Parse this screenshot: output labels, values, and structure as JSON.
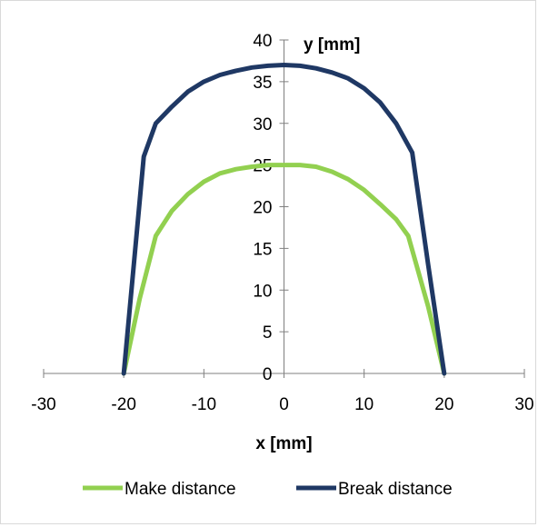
{
  "chart_data": {
    "type": "line",
    "xlabel": "x [mm]",
    "ylabel": "y [mm]",
    "xlim": [
      -30,
      30
    ],
    "ylim": [
      0,
      40
    ],
    "x_ticks": [
      -30,
      -20,
      -10,
      0,
      10,
      20,
      30
    ],
    "y_ticks": [
      0,
      5,
      10,
      15,
      20,
      25,
      30,
      35,
      40
    ],
    "grid": false,
    "legend_position": "bottom",
    "series": [
      {
        "name": "Make distance",
        "color": "#92d050",
        "points": [
          [
            -20,
            0
          ],
          [
            -18,
            9
          ],
          [
            -16,
            16.5
          ],
          [
            -14,
            19.5
          ],
          [
            -12,
            21.5
          ],
          [
            -10,
            23
          ],
          [
            -8,
            24
          ],
          [
            -6,
            24.5
          ],
          [
            -4,
            24.8
          ],
          [
            -2,
            25
          ],
          [
            0,
            25
          ],
          [
            2,
            25
          ],
          [
            4,
            24.8
          ],
          [
            6,
            24.2
          ],
          [
            8,
            23.3
          ],
          [
            10,
            22
          ],
          [
            12,
            20.3
          ],
          [
            14,
            18.5
          ],
          [
            15.5,
            16.5
          ],
          [
            18,
            8
          ],
          [
            20,
            0
          ]
        ]
      },
      {
        "name": "Break distance",
        "color": "#1f3864",
        "points": [
          [
            -20,
            0
          ],
          [
            -17.5,
            26
          ],
          [
            -16,
            30
          ],
          [
            -14,
            32
          ],
          [
            -12,
            33.8
          ],
          [
            -10,
            35
          ],
          [
            -8,
            35.8
          ],
          [
            -6,
            36.3
          ],
          [
            -4,
            36.7
          ],
          [
            -2,
            36.9
          ],
          [
            0,
            37
          ],
          [
            2,
            36.9
          ],
          [
            4,
            36.6
          ],
          [
            6,
            36.1
          ],
          [
            8,
            35.4
          ],
          [
            10,
            34.2
          ],
          [
            12,
            32.5
          ],
          [
            14,
            30
          ],
          [
            16,
            26.5
          ],
          [
            18,
            13
          ],
          [
            20,
            0
          ]
        ]
      }
    ]
  }
}
